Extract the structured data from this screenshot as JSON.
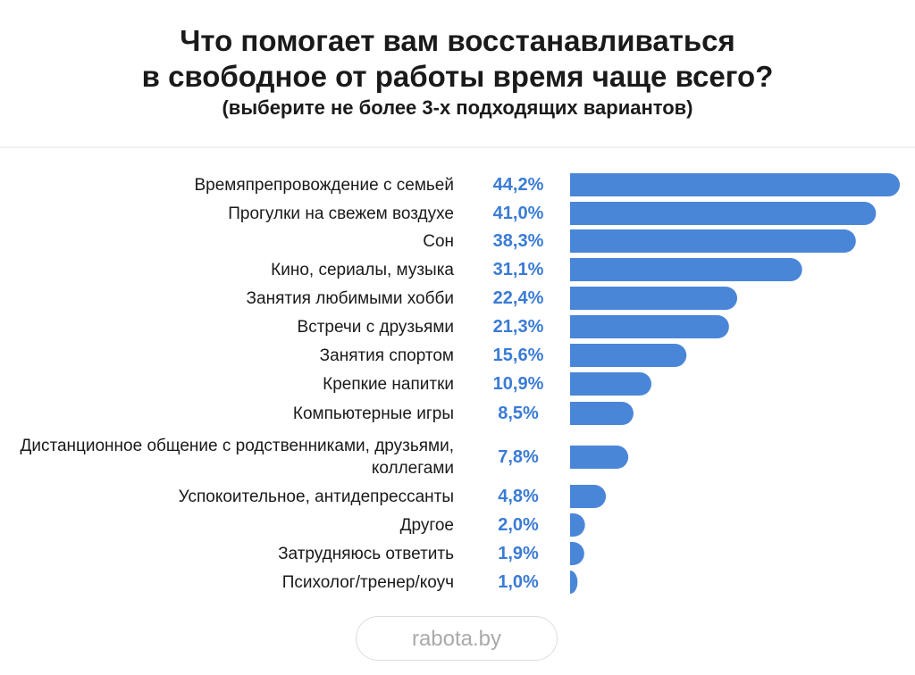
{
  "chart_data": {
    "type": "bar",
    "orientation": "horizontal",
    "title": [
      "Что помогает вам восстанавливаться",
      "в свободное от работы время чаще всего?"
    ],
    "subtitle": "(выберите не более 3-х подходящих вариантов)",
    "categories": [
      "Времяпрепровождение с семьей",
      "Прогулки на свежем воздухе",
      "Сон",
      "Кино, сериалы, музыка",
      "Занятия любимыми хобби",
      "Встречи с друзьями",
      "Занятия спортом",
      "Крепкие напитки",
      "Компьютерные игры",
      "Дистанционное общение с родственниками, друзьями, коллегами",
      "Успокоительное, антидепрессанты",
      "Другое",
      "Затрудняюсь ответить",
      "Психолог/тренер/коуч"
    ],
    "values": [
      44.2,
      41.0,
      38.3,
      31.1,
      22.4,
      21.3,
      15.6,
      10.9,
      8.5,
      7.8,
      4.8,
      2.0,
      1.9,
      1.0
    ],
    "value_labels": [
      "44,2%",
      "41,0%",
      "38,3%",
      "31,1%",
      "22,4%",
      "21,3%",
      "15,6%",
      "10,9%",
      "8,5%",
      "7,8%",
      "4,8%",
      "2,0%",
      "1,9%",
      "1,0%"
    ],
    "color": "#4a86d8",
    "source": "rabota.by"
  }
}
